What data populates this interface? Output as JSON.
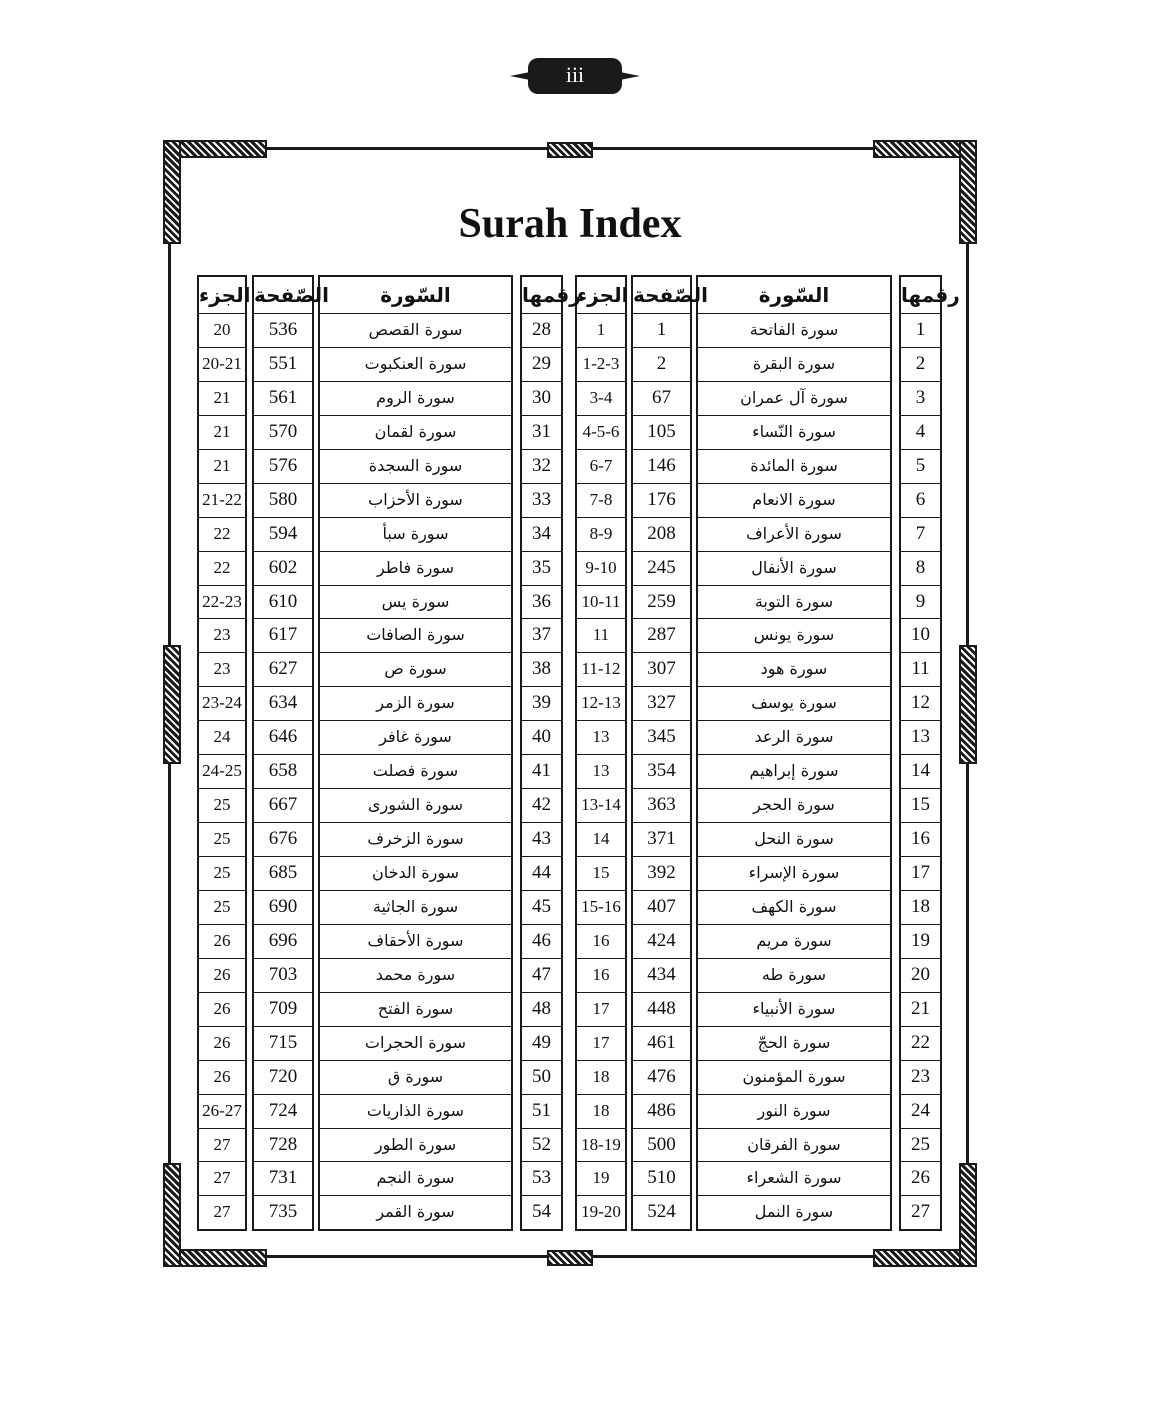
{
  "page_number": "iii",
  "title": "Surah Index",
  "headers": {
    "number": "رقمها",
    "surah": "السّورة",
    "page": "الصّفحة",
    "juz": "الجزء"
  },
  "tables": [
    {
      "rows": [
        {
          "n": "1",
          "s": "سورة الفاتحة",
          "p": "1",
          "j": "1"
        },
        {
          "n": "2",
          "s": "سورة البقرة",
          "p": "2",
          "j": "1-2-3"
        },
        {
          "n": "3",
          "s": "سورة آل عمران",
          "p": "67",
          "j": "3-4"
        },
        {
          "n": "4",
          "s": "سورة النّساء",
          "p": "105",
          "j": "4-5-6"
        },
        {
          "n": "5",
          "s": "سورة المائدة",
          "p": "146",
          "j": "6-7"
        },
        {
          "n": "6",
          "s": "سورة الانعام",
          "p": "176",
          "j": "7-8"
        },
        {
          "n": "7",
          "s": "سورة الأعراف",
          "p": "208",
          "j": "8-9"
        },
        {
          "n": "8",
          "s": "سورة الأنفال",
          "p": "245",
          "j": "9-10"
        },
        {
          "n": "9",
          "s": "سورة التوبة",
          "p": "259",
          "j": "10-11"
        },
        {
          "n": "10",
          "s": "سورة يونس",
          "p": "287",
          "j": "11"
        },
        {
          "n": "11",
          "s": "سورة هود",
          "p": "307",
          "j": "11-12"
        },
        {
          "n": "12",
          "s": "سورة يوسف",
          "p": "327",
          "j": "12-13"
        },
        {
          "n": "13",
          "s": "سورة الرعد",
          "p": "345",
          "j": "13"
        },
        {
          "n": "14",
          "s": "سورة إبراهيم",
          "p": "354",
          "j": "13"
        },
        {
          "n": "15",
          "s": "سورة الحجر",
          "p": "363",
          "j": "13-14"
        },
        {
          "n": "16",
          "s": "سورة النحل",
          "p": "371",
          "j": "14"
        },
        {
          "n": "17",
          "s": "سورة الإسراء",
          "p": "392",
          "j": "15"
        },
        {
          "n": "18",
          "s": "سورة الكهف",
          "p": "407",
          "j": "15-16"
        },
        {
          "n": "19",
          "s": "سورة مريم",
          "p": "424",
          "j": "16"
        },
        {
          "n": "20",
          "s": "سورة طه",
          "p": "434",
          "j": "16"
        },
        {
          "n": "21",
          "s": "سورة الأنبياء",
          "p": "448",
          "j": "17"
        },
        {
          "n": "22",
          "s": "سورة الحجّ",
          "p": "461",
          "j": "17"
        },
        {
          "n": "23",
          "s": "سورة المؤمنون",
          "p": "476",
          "j": "18"
        },
        {
          "n": "24",
          "s": "سورة النور",
          "p": "486",
          "j": "18"
        },
        {
          "n": "25",
          "s": "سورة الفرقان",
          "p": "500",
          "j": "18-19"
        },
        {
          "n": "26",
          "s": "سورة الشعراء",
          "p": "510",
          "j": "19"
        },
        {
          "n": "27",
          "s": "سورة النمل",
          "p": "524",
          "j": "19-20"
        }
      ]
    },
    {
      "rows": [
        {
          "n": "28",
          "s": "سورة القصص",
          "p": "536",
          "j": "20"
        },
        {
          "n": "29",
          "s": "سورة العنكبوت",
          "p": "551",
          "j": "20-21"
        },
        {
          "n": "30",
          "s": "سورة الروم",
          "p": "561",
          "j": "21"
        },
        {
          "n": "31",
          "s": "سورة لقمان",
          "p": "570",
          "j": "21"
        },
        {
          "n": "32",
          "s": "سورة السجدة",
          "p": "576",
          "j": "21"
        },
        {
          "n": "33",
          "s": "سورة الأحزاب",
          "p": "580",
          "j": "21-22"
        },
        {
          "n": "34",
          "s": "سورة سبأ",
          "p": "594",
          "j": "22"
        },
        {
          "n": "35",
          "s": "سورة فاطر",
          "p": "602",
          "j": "22"
        },
        {
          "n": "36",
          "s": "سورة يس",
          "p": "610",
          "j": "22-23"
        },
        {
          "n": "37",
          "s": "سورة الصافات",
          "p": "617",
          "j": "23"
        },
        {
          "n": "38",
          "s": "سورة ص",
          "p": "627",
          "j": "23"
        },
        {
          "n": "39",
          "s": "سورة الزمر",
          "p": "634",
          "j": "23-24"
        },
        {
          "n": "40",
          "s": "سورة غافر",
          "p": "646",
          "j": "24"
        },
        {
          "n": "41",
          "s": "سورة فصلت",
          "p": "658",
          "j": "24-25"
        },
        {
          "n": "42",
          "s": "سورة الشورى",
          "p": "667",
          "j": "25"
        },
        {
          "n": "43",
          "s": "سورة الزخرف",
          "p": "676",
          "j": "25"
        },
        {
          "n": "44",
          "s": "سورة الدخان",
          "p": "685",
          "j": "25"
        },
        {
          "n": "45",
          "s": "سورة الجاثية",
          "p": "690",
          "j": "25"
        },
        {
          "n": "46",
          "s": "سورة الأحقاف",
          "p": "696",
          "j": "26"
        },
        {
          "n": "47",
          "s": "سورة محمد",
          "p": "703",
          "j": "26"
        },
        {
          "n": "48",
          "s": "سورة الفتح",
          "p": "709",
          "j": "26"
        },
        {
          "n": "49",
          "s": "سورة الحجرات",
          "p": "715",
          "j": "26"
        },
        {
          "n": "50",
          "s": "سورة ق",
          "p": "720",
          "j": "26"
        },
        {
          "n": "51",
          "s": "سورة الذاريات",
          "p": "724",
          "j": "26-27"
        },
        {
          "n": "52",
          "s": "سورة الطور",
          "p": "728",
          "j": "27"
        },
        {
          "n": "53",
          "s": "سورة النجم",
          "p": "731",
          "j": "27"
        },
        {
          "n": "54",
          "s": "سورة القمر",
          "p": "735",
          "j": "27"
        }
      ]
    }
  ]
}
